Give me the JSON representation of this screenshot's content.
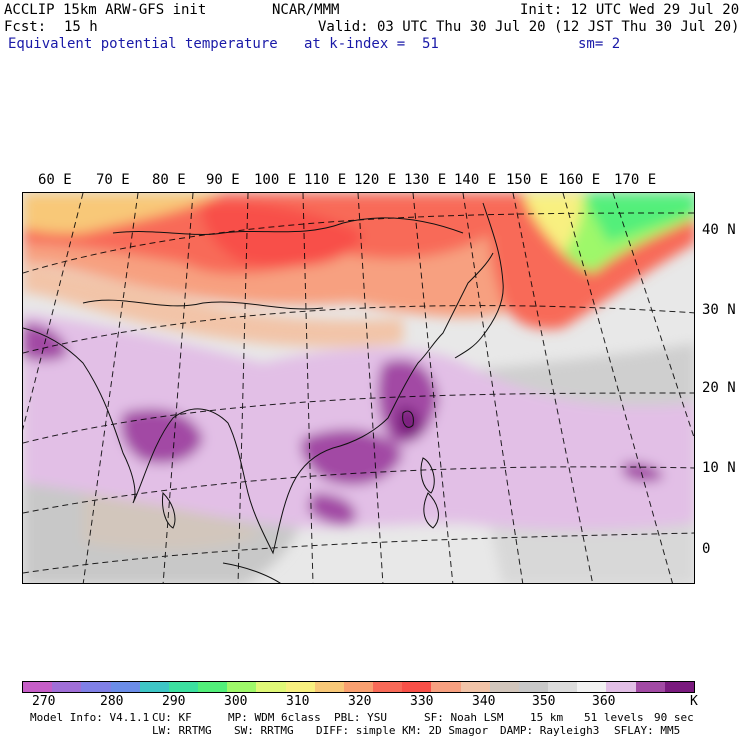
{
  "header": {
    "model": "ACCLIP 15km ARW-GFS init",
    "org": "NCAR/MMM",
    "init": "Init: 12 UTC Wed 29 Jul 20",
    "fcst_label": "Fcst:",
    "fcst_value": "15 h",
    "valid": "Valid: 03 UTC Thu 30 Jul 20 (12 JST Thu 30 Jul 20)",
    "field": "Equivalent potential temperature",
    "level": "at k-index =  51",
    "smooth": "sm= 2"
  },
  "map": {
    "lon_labels": [
      "60 E",
      "70 E",
      "80 E",
      "90 E",
      "100 E",
      "110 E",
      "120 E",
      "130 E",
      "140 E",
      "150 E",
      "160 E",
      "170 E"
    ],
    "lat_labels": [
      "40 N",
      "30 N",
      "20 N",
      "10 N",
      "0"
    ]
  },
  "colorbar": {
    "colors": [
      "#c65ec7",
      "#a06fd7",
      "#8080e6",
      "#6b8de8",
      "#3ec6c6",
      "#3ce0a0",
      "#52ef7a",
      "#9ef86a",
      "#e0f878",
      "#f8f080",
      "#f8c878",
      "#f9a070",
      "#f86a58",
      "#f85048",
      "#f7a080",
      "#f2c4a8",
      "#d2c6bc",
      "#c8c8c8",
      "#dcdcdc",
      "#f2f2f2",
      "#e2bfe6",
      "#a24aa4",
      "#7a1a7e"
    ],
    "labels": [
      "270",
      "280",
      "290",
      "300",
      "310",
      "320",
      "330",
      "340",
      "350",
      "360"
    ],
    "unit": "K"
  },
  "footer": {
    "line1": [
      "Model Info: V4.1.1",
      "CU: KF",
      "MP: WDM 6class",
      "PBL: YSU",
      "SF: Noah LSM",
      "15 km",
      "51 levels",
      "90 sec"
    ],
    "line2": [
      "LW: RRTMG",
      "SW: RRTMG",
      "DIFF: simple",
      "KM: 2D Smagor",
      "DAMP: Rayleigh3",
      "SFLAY: MM5"
    ]
  }
}
